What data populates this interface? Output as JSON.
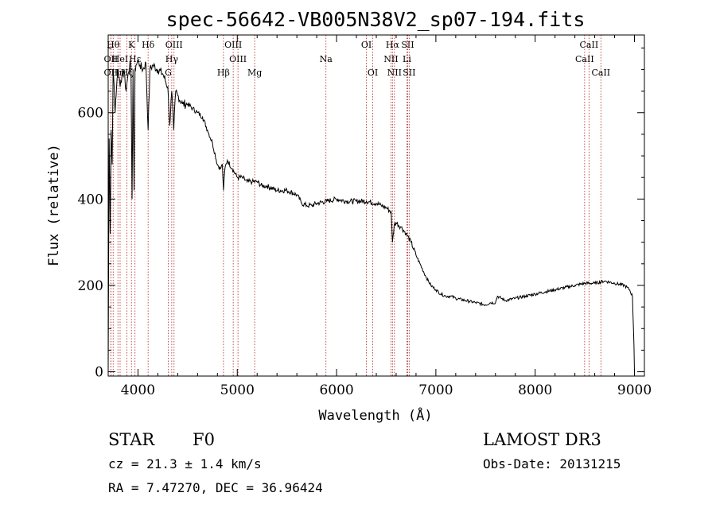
{
  "chart_data": {
    "type": "line",
    "title": "spec-56642-VB005N38V2_sp07-194.fits",
    "xlabel": "Wavelength (Å)",
    "ylabel": "Flux (relative)",
    "xlim": [
      3700,
      9100
    ],
    "ylim": [
      -10,
      780
    ],
    "xticks": [
      4000,
      5000,
      6000,
      7000,
      8000,
      9000
    ],
    "yticks": [
      0,
      200,
      400,
      600
    ],
    "series": [
      {
        "name": "flux",
        "x": [
          3700,
          3710,
          3720,
          3730,
          3740,
          3750,
          3760,
          3770,
          3780,
          3790,
          3800,
          3820,
          3840,
          3860,
          3880,
          3900,
          3920,
          3930,
          3940,
          3950,
          3960,
          3970,
          3980,
          4000,
          4020,
          4050,
          4080,
          4102,
          4120,
          4150,
          4200,
          4250,
          4300,
          4320,
          4340,
          4360,
          4380,
          4400,
          4450,
          4500,
          4550,
          4600,
          4650,
          4700,
          4750,
          4800,
          4830,
          4850,
          4861,
          4875,
          4900,
          4950,
          5000,
          5050,
          5100,
          5150,
          5200,
          5250,
          5300,
          5400,
          5500,
          5600,
          5650,
          5700,
          5750,
          5800,
          5900,
          6000,
          6100,
          6200,
          6300,
          6400,
          6450,
          6500,
          6550,
          6563,
          6580,
          6600,
          6650,
          6700,
          6750,
          6800,
          6850,
          6900,
          6950,
          7000,
          7050,
          7100,
          7150,
          7200,
          7300,
          7400,
          7500,
          7550,
          7600,
          7620,
          7700,
          7800,
          7900,
          8000,
          8100,
          8200,
          8300,
          8400,
          8500,
          8600,
          8700,
          8800,
          8900,
          8950,
          8980,
          8995,
          9000
        ],
        "y": [
          5,
          540,
          320,
          560,
          480,
          700,
          660,
          600,
          640,
          680,
          700,
          660,
          690,
          700,
          650,
          690,
          720,
          690,
          400,
          700,
          420,
          700,
          710,
          720,
          710,
          700,
          715,
          560,
          700,
          710,
          700,
          690,
          660,
          570,
          650,
          560,
          650,
          640,
          620,
          620,
          610,
          600,
          590,
          560,
          530,
          480,
          470,
          480,
          420,
          470,
          490,
          470,
          450,
          450,
          440,
          440,
          440,
          430,
          430,
          420,
          420,
          410,
          390,
          385,
          385,
          390,
          395,
          400,
          395,
          395,
          395,
          390,
          385,
          380,
          370,
          300,
          340,
          345,
          335,
          320,
          300,
          270,
          245,
          220,
          200,
          190,
          180,
          175,
          175,
          170,
          165,
          160,
          155,
          160,
          160,
          175,
          165,
          170,
          175,
          180,
          185,
          190,
          195,
          200,
          205,
          205,
          210,
          205,
          200,
          190,
          175,
          60,
          0
        ]
      }
    ],
    "lines": [
      {
        "name": "OΙΙ",
        "wl": 3727,
        "row": 1
      },
      {
        "name": "Hθ",
        "wl": 3750,
        "row": 0
      },
      {
        "name": "OΙΙ",
        "wl": 3727,
        "row": 2
      },
      {
        "name": "Hη",
        "wl": 3798,
        "row": 2
      },
      {
        "name": "HeΙ",
        "wl": 3820,
        "row": 1
      },
      {
        "name": "K",
        "wl": 3934,
        "row": 0
      },
      {
        "name": "Hε",
        "wl": 3970,
        "row": 1
      },
      {
        "name": "Hζ",
        "wl": 3889,
        "row": 2
      },
      {
        "name": "Hδ",
        "wl": 4102,
        "row": 0
      },
      {
        "name": "OΙΙΙ",
        "wl": 4363,
        "row": 0
      },
      {
        "name": "Hγ",
        "wl": 4340,
        "row": 1
      },
      {
        "name": "G",
        "wl": 4305,
        "row": 2
      },
      {
        "name": "Hβ",
        "wl": 4861,
        "row": 2
      },
      {
        "name": "OΙΙΙ",
        "wl": 4959,
        "row": 0
      },
      {
        "name": "OΙΙΙ",
        "wl": 5007,
        "row": 1
      },
      {
        "name": "Mg",
        "wl": 5175,
        "row": 2
      },
      {
        "name": "Na",
        "wl": 5893,
        "row": 1
      },
      {
        "name": "OΙ",
        "wl": 6300,
        "row": 0
      },
      {
        "name": "OΙ",
        "wl": 6364,
        "row": 2
      },
      {
        "name": "Hα",
        "wl": 6563,
        "row": 0
      },
      {
        "name": "NΙΙ",
        "wl": 6548,
        "row": 1
      },
      {
        "name": "NΙΙ",
        "wl": 6583,
        "row": 2
      },
      {
        "name": "SΙΙ",
        "wl": 6716,
        "row": 0
      },
      {
        "name": "Li",
        "wl": 6708,
        "row": 1
      },
      {
        "name": "SΙΙ",
        "wl": 6731,
        "row": 2
      },
      {
        "name": "CaΙΙ",
        "wl": 8542,
        "row": 0
      },
      {
        "name": "CaΙΙ",
        "wl": 8498,
        "row": 1
      },
      {
        "name": "CaΙΙ",
        "wl": 8662,
        "row": 2
      }
    ]
  },
  "info": {
    "object_class": "STAR",
    "subclass": "F0",
    "cz": "cz = 21.3 ± 1.4 km/s",
    "coords": "RA =   7.47270, DEC =  36.96424",
    "survey": "LAMOST DR3",
    "obs_date": "Obs-Date: 20131215"
  },
  "colors": {
    "spectrum": "#000000",
    "line_marker": "#b22222"
  }
}
